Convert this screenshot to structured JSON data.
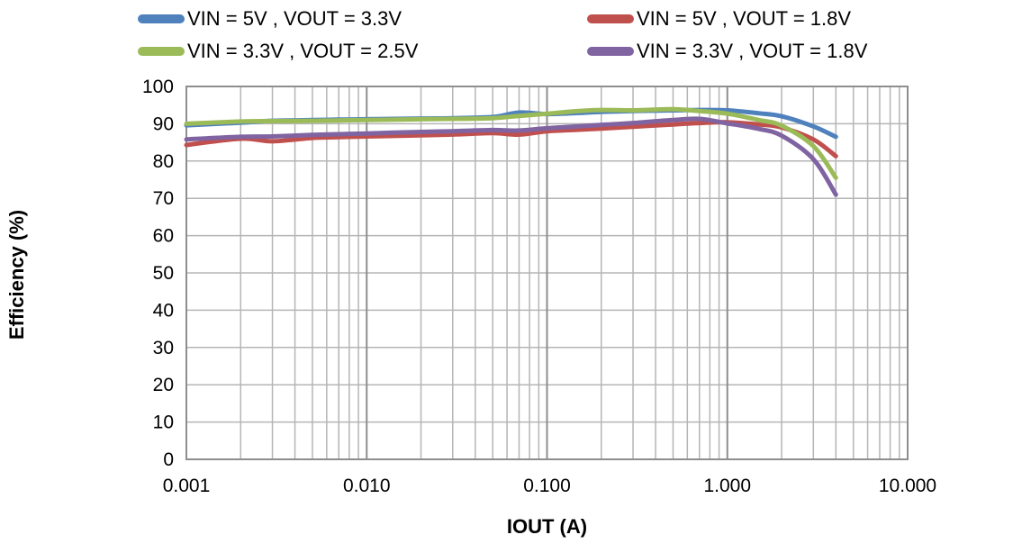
{
  "legend": {
    "items": [
      {
        "label": "VIN = 5V , VOUT = 3.3V",
        "series": "vin5-vout3.3",
        "color": "#4f81bd"
      },
      {
        "label": "VIN = 5V , VOUT = 1.8V",
        "series": "vin5-vout1.8",
        "color": "#c0504d"
      },
      {
        "label": "VIN = 3.3V , VOUT = 2.5V",
        "series": "vin3.3-vout2.5",
        "color": "#9bbb59"
      },
      {
        "label": "VIN = 3.3V , VOUT = 1.8V",
        "series": "vin3.3-vout1.8",
        "color": "#8064a2"
      }
    ]
  },
  "chart_data": {
    "type": "line",
    "title": "",
    "xlabel": "IOUT (A)",
    "ylabel": "Efficiency (%)",
    "x_scale": "log",
    "xlim": [
      0.001,
      10
    ],
    "ylim": [
      0,
      100
    ],
    "grid": "major-and-minor vertical (log decades), horizontal every 10",
    "legend_position": "top, two columns",
    "x_ticks": [
      {
        "value": 0.001,
        "label": "0.001"
      },
      {
        "value": 0.01,
        "label": "0.010"
      },
      {
        "value": 0.1,
        "label": "0.100"
      },
      {
        "value": 1.0,
        "label": "1.000"
      },
      {
        "value": 10.0,
        "label": "10.000"
      }
    ],
    "y_ticks": [
      0,
      10,
      20,
      30,
      40,
      50,
      60,
      70,
      80,
      90,
      100
    ],
    "x": [
      0.001,
      0.002,
      0.003,
      0.005,
      0.007,
      0.01,
      0.02,
      0.03,
      0.05,
      0.07,
      0.1,
      0.15,
      0.2,
      0.3,
      0.5,
      0.7,
      1.0,
      1.5,
      2.0,
      3.0,
      4.0
    ],
    "series": [
      {
        "id": "vin5-vout3.3",
        "name": "VIN = 5V , VOUT = 3.3V",
        "color": "#4f81bd",
        "values": [
          89.6,
          90.3,
          90.8,
          91.0,
          91.1,
          91.2,
          91.4,
          91.5,
          91.8,
          93.0,
          92.6,
          92.9,
          93.2,
          93.4,
          93.6,
          93.7,
          93.6,
          92.8,
          92.0,
          89.3,
          86.5
        ]
      },
      {
        "id": "vin5-vout1.8",
        "name": "VIN = 5V , VOUT = 1.8V",
        "color": "#c0504d",
        "values": [
          84.3,
          86.0,
          85.3,
          86.2,
          86.4,
          86.6,
          86.9,
          87.1,
          87.5,
          87.1,
          88.0,
          88.4,
          88.7,
          89.2,
          89.8,
          90.2,
          90.4,
          89.8,
          89.0,
          85.8,
          81.3
        ]
      },
      {
        "id": "vin3.3-vout2.5",
        "name": "VIN = 3.3V , VOUT = 2.5V",
        "color": "#9bbb59",
        "values": [
          90.0,
          90.6,
          90.7,
          90.8,
          90.9,
          91.0,
          91.2,
          91.3,
          91.5,
          92.1,
          92.7,
          93.4,
          93.7,
          93.6,
          93.9,
          93.4,
          92.7,
          91.0,
          89.5,
          84.0,
          75.5
        ]
      },
      {
        "id": "vin3.3-vout1.8",
        "name": "VIN = 3.3V , VOUT = 1.8V",
        "color": "#8064a2",
        "values": [
          85.8,
          86.5,
          86.6,
          87.0,
          87.2,
          87.4,
          87.8,
          88.0,
          88.3,
          88.2,
          88.8,
          89.3,
          89.7,
          90.2,
          91.0,
          91.3,
          90.1,
          88.6,
          86.8,
          80.5,
          71.0
        ]
      }
    ],
    "colors": {
      "grid_minor": "#b5b5b5",
      "grid_major": "#8e8e8e",
      "plot_border": "#8e8e8e",
      "tick_text": "#000000"
    }
  }
}
